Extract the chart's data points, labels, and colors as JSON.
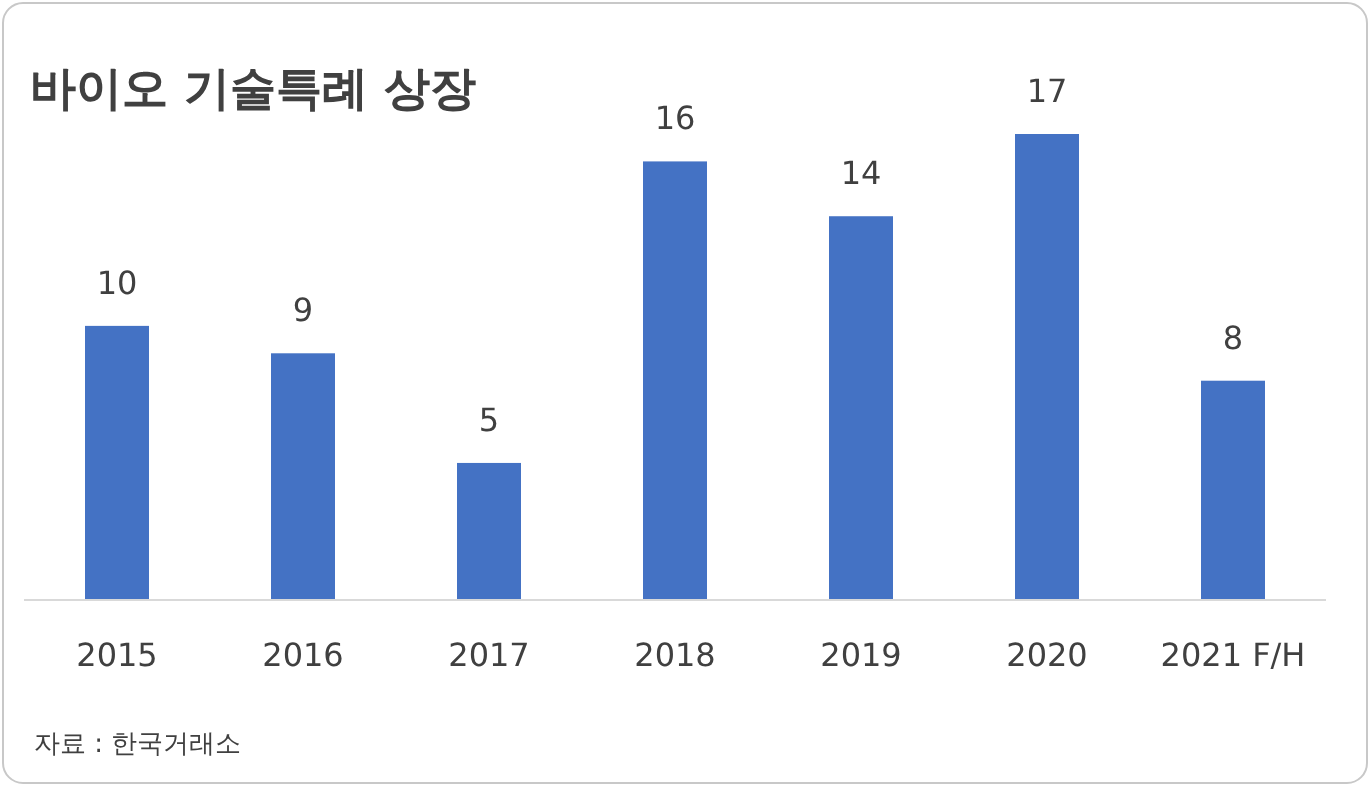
{
  "chart_data": {
    "type": "bar",
    "title": "바이오 기술특례 상장",
    "categories": [
      "2015",
      "2016",
      "2017",
      "2018",
      "2019",
      "2020",
      "2021 F/H"
    ],
    "values": [
      10,
      9,
      5,
      16,
      14,
      17,
      8
    ],
    "color": "#4472c4",
    "data_labels": true,
    "annotations": [
      "자료 : 한국거래소"
    ]
  }
}
